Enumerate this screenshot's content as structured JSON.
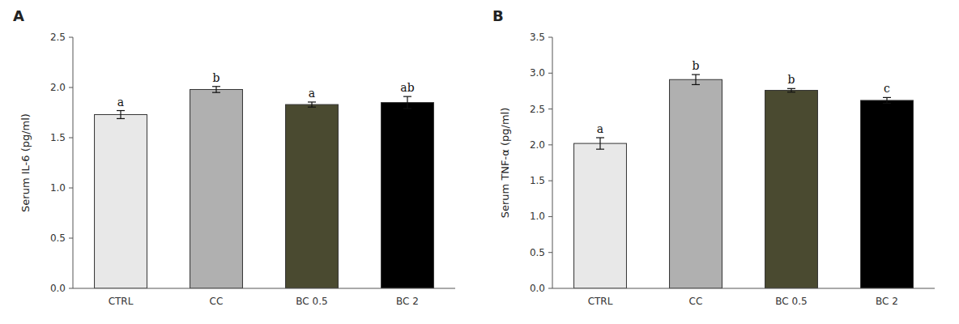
{
  "chart_data": [
    {
      "type": "bar",
      "title": "A",
      "categories": [
        "CTRL",
        "CC",
        "BC 0.5",
        "BC 2"
      ],
      "values": [
        1.73,
        1.98,
        1.83,
        1.85
      ],
      "errors": [
        0.04,
        0.03,
        0.025,
        0.06
      ],
      "annotations": [
        "a",
        "b",
        "a",
        "ab"
      ],
      "colors": [
        "#e8e8e8",
        "#b0b0b0",
        "#4a4a30",
        "#000000"
      ],
      "ylabel": "Serum IL-6 (pg/ml)",
      "ylim": [
        0,
        2.5
      ],
      "yticks": [
        {
          "value": 0,
          "label": "0.0"
        },
        0.5,
        {
          "value": 1,
          "label": "1.0"
        },
        1.5,
        {
          "value": 2,
          "label": "2.0"
        },
        2.5
      ],
      "grid": false
    },
    {
      "type": "bar",
      "title": "B",
      "categories": [
        "CTRL",
        "CC",
        "BC 0.5",
        "BC 2"
      ],
      "values": [
        2.02,
        2.91,
        2.76,
        2.62
      ],
      "errors": [
        0.08,
        0.07,
        0.025,
        0.04
      ],
      "annotations": [
        "a",
        "b",
        "b",
        "c"
      ],
      "colors": [
        "#e8e8e8",
        "#b0b0b0",
        "#4a4a30",
        "#000000"
      ],
      "ylabel": "Serum TNF-α (pg/ml)",
      "ylim": [
        0,
        3.5
      ],
      "yticks": [
        {
          "value": 0,
          "label": "0.0"
        },
        0.5,
        {
          "value": 1,
          "label": "1.0"
        },
        1.5,
        {
          "value": 2,
          "label": "2.0"
        },
        2.5,
        {
          "value": 3,
          "label": "3.0"
        },
        3.5
      ],
      "grid": false
    }
  ]
}
